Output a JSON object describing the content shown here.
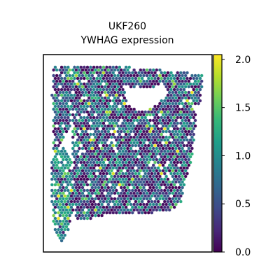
{
  "chart_data": {
    "type": "scatter",
    "title_lines": [
      "UKF260",
      "YWHAG expression"
    ],
    "xlabel": "",
    "ylabel": "",
    "grid": false,
    "colorbar": {
      "colormap": "viridis",
      "range": [
        0.0,
        2.05
      ],
      "ticks": [
        0.0,
        0.5,
        1.0,
        1.5,
        2.0
      ],
      "tick_labels": [
        "0.0",
        "0.5",
        "1.0",
        "1.5",
        "2.0"
      ],
      "placement": "right"
    },
    "spots": {
      "marker": "hexagon",
      "layout": "hexagonal grid (spatial transcriptomics spots)",
      "summary": "Tissue-section spots coloured by YWHAG expression; most values between 0.0 and 1.2, occasional hotspots near 2.0, denser bright spots on the left strip.",
      "value_range": [
        0.0,
        2.05
      ]
    }
  },
  "colors": {
    "viridis_stops": [
      "#440154",
      "#482878",
      "#3e4a89",
      "#31688e",
      "#26828e",
      "#1f9e89",
      "#35b779",
      "#6ece58",
      "#b5de2b",
      "#fde725"
    ],
    "frame": "#000000",
    "background": "#ffffff"
  }
}
